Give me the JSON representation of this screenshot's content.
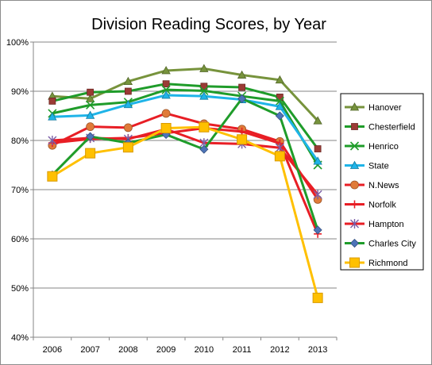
{
  "chart_data": {
    "type": "line",
    "title": "Division Reading Scores, by Year",
    "xlabel": "",
    "ylabel": "",
    "x": [
      "2006",
      "2007",
      "2008",
      "2009",
      "2010",
      "2011",
      "2012",
      "2013"
    ],
    "ylim": [
      40,
      100
    ],
    "yticks": [
      40,
      50,
      60,
      70,
      80,
      90,
      100
    ],
    "ytick_labels": [
      "40%",
      "50%",
      "60%",
      "70%",
      "80%",
      "90%",
      "100%"
    ],
    "grid": true,
    "legend_position": "right",
    "series": [
      {
        "name": "Hanover",
        "color": "#77933c",
        "marker": "triangle",
        "values": [
          89,
          88.5,
          92,
          94.2,
          94.6,
          93.3,
          92.3,
          84
        ]
      },
      {
        "name": "Chesterfield",
        "color": "#9b3b35",
        "line_color": "#1f9c2a",
        "marker": "square",
        "values": [
          88,
          89.8,
          90,
          91.5,
          91,
          90.8,
          88.8,
          78.3
        ]
      },
      {
        "name": "Henrico",
        "color": "#1f9c2a",
        "marker": "x",
        "values": [
          85.5,
          87.2,
          87.8,
          90.3,
          90.1,
          89,
          88,
          75
        ]
      },
      {
        "name": "State",
        "color": "#1fb4e8",
        "marker": "triangle",
        "values": [
          84.8,
          85.1,
          87.3,
          89.2,
          89,
          88.3,
          86.9,
          75.8
        ]
      },
      {
        "name": "N.News",
        "color": "#e07b39",
        "line_color": "#e81e25",
        "marker": "circle",
        "values": [
          79,
          82.8,
          82.6,
          85.5,
          83.4,
          82.3,
          79.8,
          68
        ]
      },
      {
        "name": "Norfolk",
        "color": "#e81e25",
        "marker": "plus",
        "values": [
          79.5,
          80.3,
          80.5,
          81.5,
          82.5,
          81.8,
          79.4,
          61
        ]
      },
      {
        "name": "Hampton",
        "color": "#e81e25",
        "marker_color": "#7b5ea7",
        "marker": "star",
        "values": [
          80,
          80.5,
          80.3,
          82.3,
          79.5,
          79.3,
          78.5,
          69
        ]
      },
      {
        "name": "Charles City",
        "color": "#1f9c2a",
        "marker_color": "#4d74b8",
        "marker": "diamond",
        "values": [
          73,
          80.8,
          79.5,
          81.2,
          78.2,
          88.5,
          85,
          61.8
        ]
      },
      {
        "name": "Richmond",
        "color": "#ffc000",
        "marker": "square_big",
        "values": [
          72.7,
          77.4,
          78.6,
          82.5,
          82.7,
          80.2,
          76.8,
          48
        ]
      }
    ]
  }
}
